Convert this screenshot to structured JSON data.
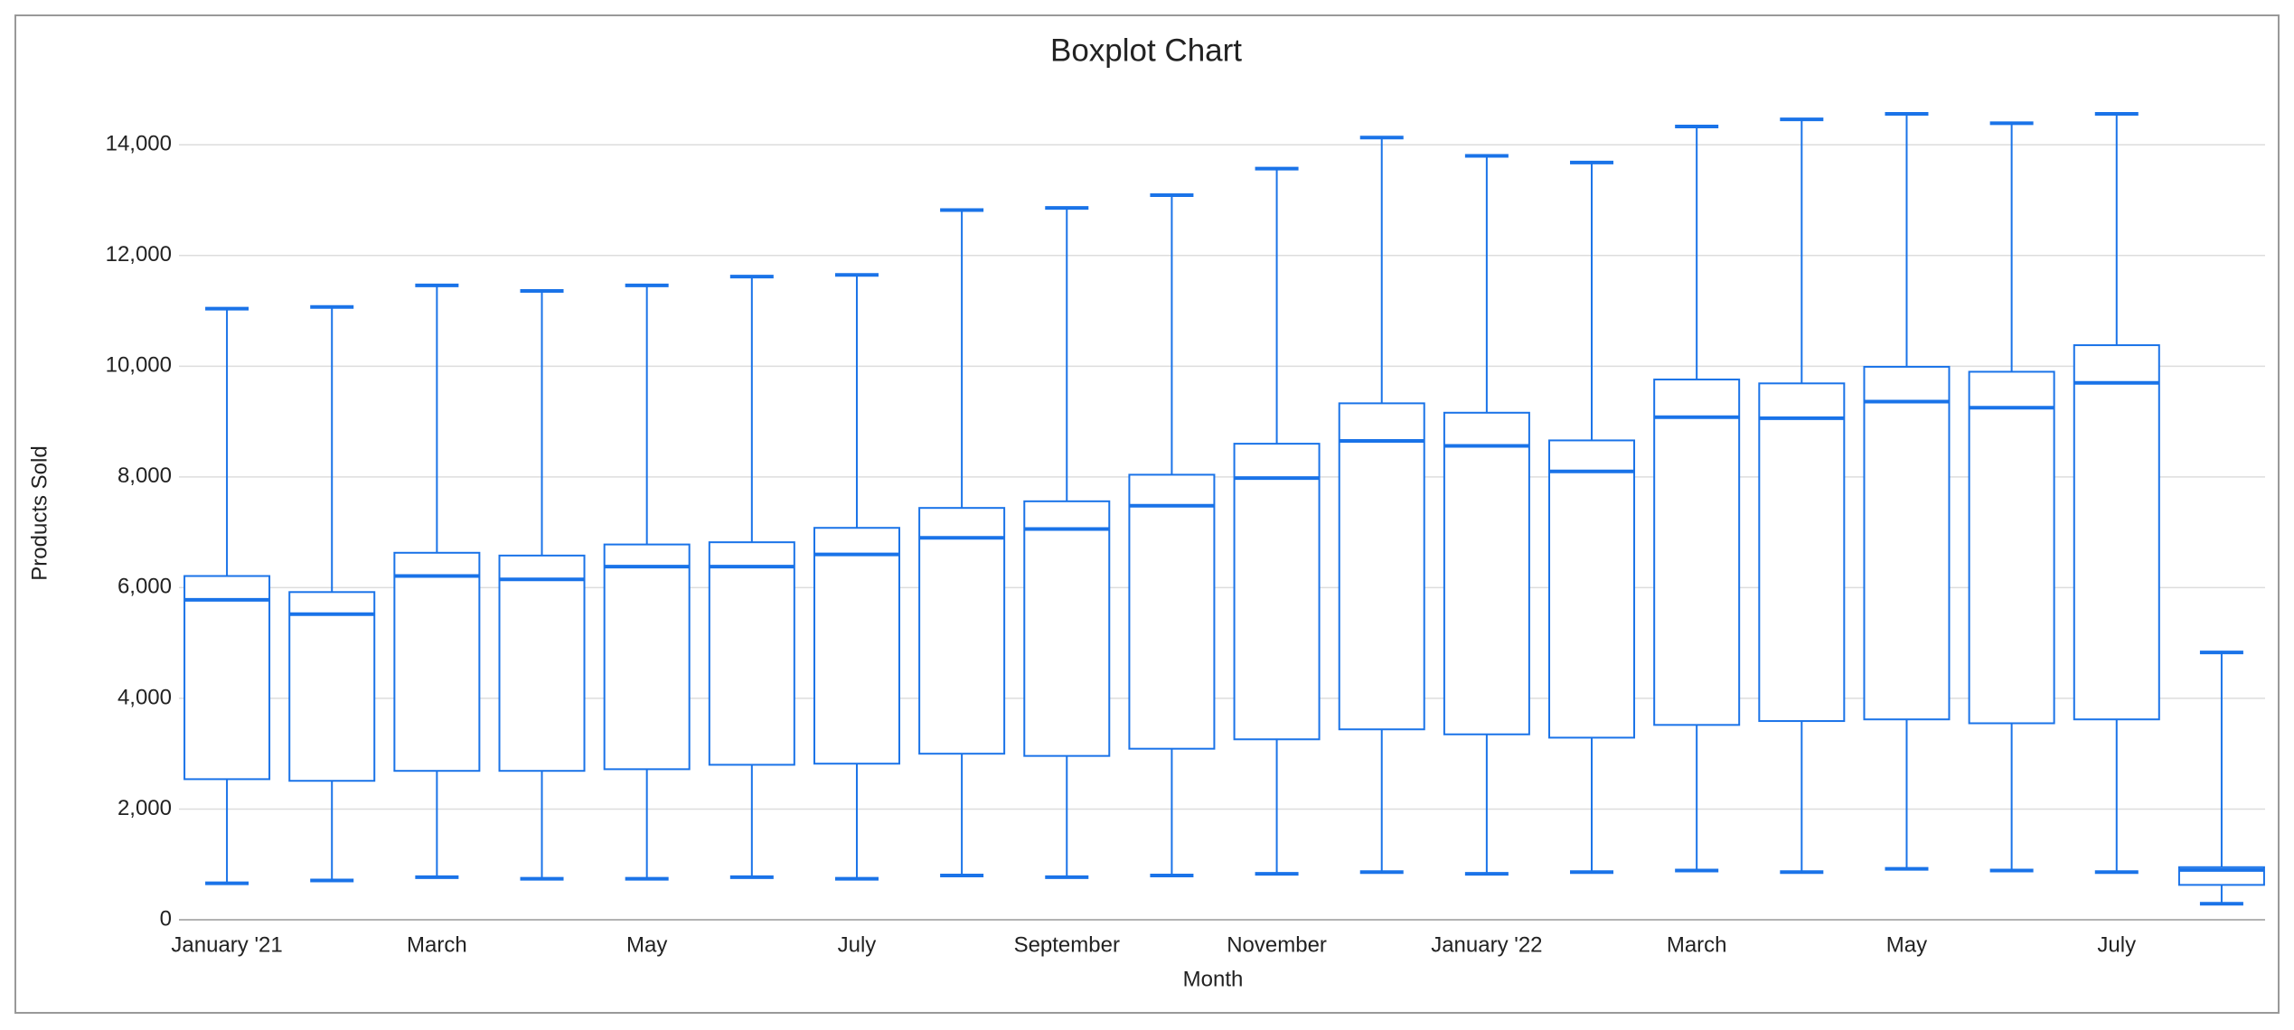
{
  "chart_data": {
    "type": "boxplot",
    "title": "Boxplot Chart",
    "x_label": "Month",
    "y_label": "Products Sold",
    "categories": [
      "January '21",
      null,
      "March",
      null,
      "May",
      null,
      "July",
      null,
      "September",
      null,
      "November",
      null,
      "January '22",
      null,
      "March",
      null,
      "May",
      null,
      "July",
      null
    ],
    "whisker_low": [
      660,
      710,
      770,
      740,
      740,
      770,
      740,
      800,
      770,
      800,
      830,
      860,
      830,
      860,
      890,
      860,
      920,
      890,
      860,
      290
    ],
    "q1": [
      2540,
      2510,
      2690,
      2690,
      2720,
      2800,
      2820,
      3000,
      2960,
      3090,
      3260,
      3440,
      3350,
      3290,
      3520,
      3590,
      3620,
      3550,
      3620,
      630
    ],
    "median": [
      5780,
      5520,
      6210,
      6150,
      6380,
      6380,
      6600,
      6900,
      7060,
      7480,
      7980,
      8650,
      8560,
      8100,
      9080,
      9060,
      9360,
      9250,
      9700,
      900
    ],
    "q3": [
      6210,
      5920,
      6630,
      6580,
      6780,
      6820,
      7080,
      7440,
      7560,
      8040,
      8600,
      9330,
      9160,
      8660,
      9760,
      9690,
      9990,
      9900,
      10380,
      950
    ],
    "whisker_high": [
      11040,
      11070,
      11460,
      11360,
      11460,
      11620,
      11650,
      12820,
      12860,
      13090,
      13570,
      14130,
      13800,
      13680,
      14330,
      14460,
      14560,
      14390,
      14560,
      4830
    ],
    "color": "#1a73e8",
    "ylim": [
      0,
      15000
    ],
    "yticks": [
      0,
      {
        "value": 2000,
        "label": "2,000"
      },
      {
        "value": 4000,
        "label": "4,000"
      },
      {
        "value": 6000,
        "label": "6,000"
      },
      {
        "value": 8000,
        "label": "8,000"
      },
      {
        "value": 10000,
        "label": "10,000"
      },
      {
        "value": 12000,
        "label": "12,000"
      },
      {
        "value": 14000,
        "label": "14,000"
      }
    ],
    "grid": true
  }
}
